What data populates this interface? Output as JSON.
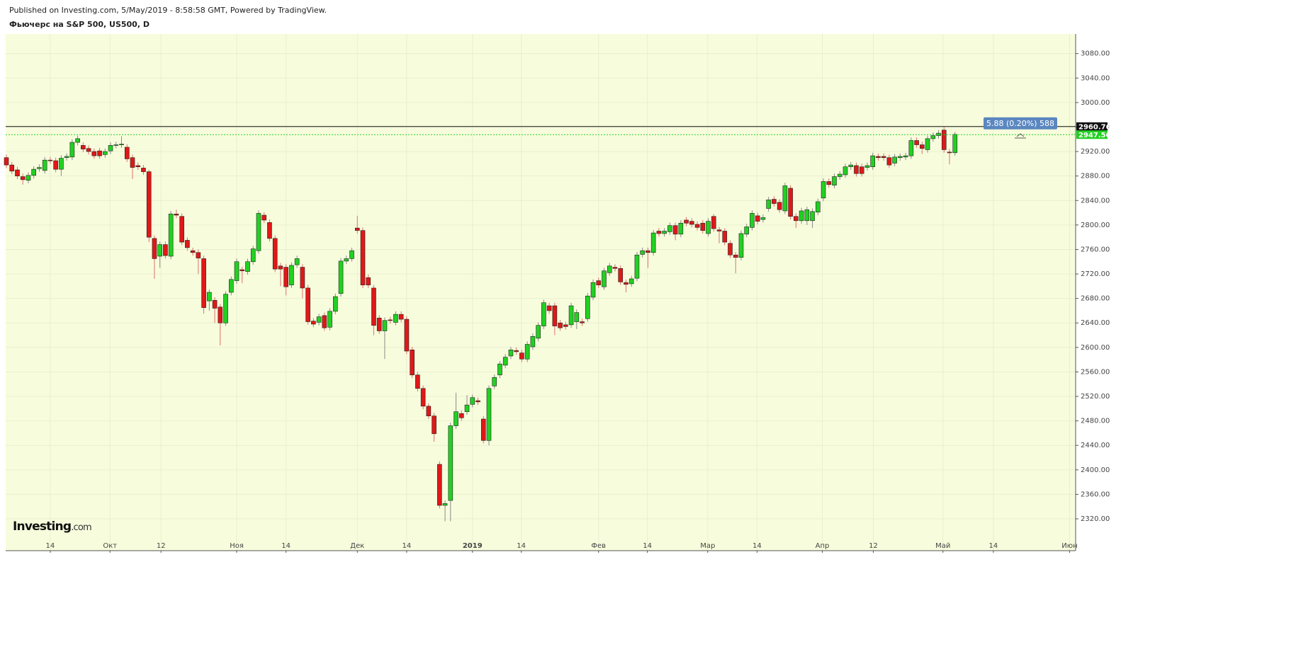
{
  "header": {
    "published": "Published on Investing.com, 5/May/2019 - 8:58:58 GMT, Powered by TradingView.",
    "symbol": "Фьючерс на S&P 500, US500, D"
  },
  "logo": {
    "name": "Investing",
    "suffix": ".com"
  },
  "chart_data": {
    "type": "candlestick",
    "up_color": "#22d022",
    "down_color": "#e01818",
    "background": "#f7fddc",
    "grid": true,
    "xlim": [
      -0.13,
      195
    ],
    "xticks": [
      {
        "value": 8.0,
        "label": "14"
      },
      {
        "value": 18.9,
        "label": "Окт"
      },
      {
        "value": 28.2,
        "label": "12"
      },
      {
        "value": 42.0,
        "label": "Ноя"
      },
      {
        "value": 51.0,
        "label": "14"
      },
      {
        "value": 64.0,
        "label": "Дек"
      },
      {
        "value": 73.0,
        "label": "14"
      },
      {
        "value": 85.0,
        "label": "2019"
      },
      {
        "value": 93.9,
        "label": "14"
      },
      {
        "value": 108.0,
        "label": "Фев"
      },
      {
        "value": 116.9,
        "label": "14"
      },
      {
        "value": 127.9,
        "label": "Мар"
      },
      {
        "value": 136.9,
        "label": "14"
      },
      {
        "value": 148.8,
        "label": "Апр"
      },
      {
        "value": 158.1,
        "label": "12"
      },
      {
        "value": 170.8,
        "label": "Май"
      },
      {
        "value": 180.0,
        "label": "14"
      },
      {
        "value": 193.9,
        "label": "Июн"
      }
    ],
    "ylim": [
      2268,
      3112
    ],
    "yticks": [
      {
        "value": 2320,
        "label": "2320.00"
      },
      {
        "value": 2360,
        "label": "2360.00"
      },
      {
        "value": 2400,
        "label": "2400.00"
      },
      {
        "value": 2440,
        "label": "2440.00"
      },
      {
        "value": 2480,
        "label": "2480.00"
      },
      {
        "value": 2520,
        "label": "2520.00"
      },
      {
        "value": 2560,
        "label": "2560.00"
      },
      {
        "value": 2600,
        "label": "2600.00"
      },
      {
        "value": 2640,
        "label": "2640.00"
      },
      {
        "value": 2680,
        "label": "2680.00"
      },
      {
        "value": 2720,
        "label": "2720.00"
      },
      {
        "value": 2760,
        "label": "2760.00"
      },
      {
        "value": 2800,
        "label": "2800.00"
      },
      {
        "value": 2840,
        "label": "2840.00"
      },
      {
        "value": 2880,
        "label": "2880.00"
      },
      {
        "value": 2920,
        "label": "2920.00"
      },
      {
        "value": 2960,
        "label": "2960.00"
      },
      {
        "value": 3000,
        "label": "3000.00"
      },
      {
        "value": 3040,
        "label": "3040.00"
      },
      {
        "value": 3080,
        "label": "3080.00"
      }
    ],
    "price_lines": [
      {
        "value": 2960.76,
        "label": "2960.76",
        "color": "#111111",
        "style": "solid"
      },
      {
        "value": 2947.5,
        "label": "2947.50",
        "color": "#22d022",
        "style": "dotted"
      }
    ],
    "annotation": {
      "text": "5.88 (0.20%) 588",
      "color": "#5b87c0"
    },
    "open": [
      2910,
      2898,
      2890,
      2879,
      2873,
      2881,
      2892,
      2889,
      2906,
      2905,
      2891,
      2910,
      2911,
      2935,
      2930,
      2925,
      2920,
      2921,
      2915,
      2921,
      2930,
      2931,
      2927,
      2910,
      2897,
      2893,
      2887,
      2778,
      2749,
      2768,
      2749,
      2818,
      2814,
      2775,
      2758,
      2755,
      2745,
      2676,
      2677,
      2666,
      2640,
      2690,
      2709,
      2727,
      2724,
      2740,
      2758,
      2816,
      2804,
      2778,
      2733,
      2731,
      2702,
      2735,
      2731,
      2697,
      2643,
      2641,
      2652,
      2633,
      2659,
      2688,
      2741,
      2745,
      2795,
      2791,
      2714,
      2697,
      2648,
      2627,
      2645,
      2641,
      2654,
      2646,
      2596,
      2555,
      2533,
      2504,
      2488,
      2409,
      2342,
      2350,
      2472,
      2492,
      2495,
      2507,
      2513,
      2483,
      2448,
      2537,
      2555,
      2571,
      2586,
      2595,
      2591,
      2581,
      2601,
      2615,
      2635,
      2668,
      2668,
      2640,
      2637,
      2637,
      2642,
      2642,
      2647,
      2682,
      2709,
      2699,
      2722,
      2731,
      2729,
      2706,
      2704,
      2713,
      2752,
      2758,
      2755,
      2790,
      2786,
      2789,
      2799,
      2785,
      2808,
      2806,
      2801,
      2803,
      2786,
      2814,
      2792,
      2790,
      2770,
      2751,
      2747,
      2785,
      2796,
      2815,
      2809,
      2827,
      2842,
      2837,
      2823,
      2860,
      2814,
      2807,
      2807,
      2807,
      2821,
      2844,
      2871,
      2865,
      2879,
      2882,
      2895,
      2897,
      2895,
      2894,
      2895,
      2912,
      2912,
      2910,
      2901,
      2910,
      2911,
      2913,
      2938,
      2931,
      2923,
      2941,
      2946,
      2955,
      2919,
      2918
    ],
    "high": [
      2915,
      2903,
      2895,
      2884,
      2886,
      2896,
      2899,
      2911,
      2911,
      2910,
      2914,
      2917,
      2940,
      2946,
      2935,
      2930,
      2925,
      2926,
      2925,
      2935,
      2936,
      2945,
      2932,
      2915,
      2902,
      2898,
      2890,
      2783,
      2773,
      2773,
      2823,
      2825,
      2819,
      2780,
      2763,
      2760,
      2750,
      2695,
      2682,
      2671,
      2692,
      2716,
      2745,
      2732,
      2745,
      2766,
      2824,
      2821,
      2809,
      2783,
      2738,
      2736,
      2739,
      2750,
      2736,
      2702,
      2648,
      2655,
      2657,
      2664,
      2688,
      2746,
      2750,
      2763,
      2815,
      2796,
      2719,
      2702,
      2653,
      2649,
      2650,
      2659,
      2659,
      2651,
      2601,
      2560,
      2538,
      2509,
      2493,
      2414,
      2350,
      2477,
      2526,
      2497,
      2522,
      2523,
      2518,
      2488,
      2538,
      2556,
      2578,
      2589,
      2601,
      2600,
      2596,
      2610,
      2623,
      2641,
      2678,
      2673,
      2673,
      2645,
      2642,
      2673,
      2662,
      2647,
      2689,
      2711,
      2714,
      2730,
      2738,
      2736,
      2734,
      2711,
      2717,
      2756,
      2763,
      2763,
      2792,
      2795,
      2795,
      2804,
      2804,
      2808,
      2813,
      2811,
      2806,
      2808,
      2811,
      2818,
      2797,
      2795,
      2775,
      2756,
      2791,
      2802,
      2824,
      2820,
      2817,
      2846,
      2847,
      2842,
      2869,
      2865,
      2819,
      2828,
      2830,
      2827,
      2843,
      2876,
      2876,
      2884,
      2888,
      2900,
      2903,
      2902,
      2900,
      2902,
      2918,
      2917,
      2917,
      2915,
      2916,
      2917,
      2918,
      2943,
      2943,
      2936,
      2946,
      2951,
      2955,
      2960,
      2924,
      2952
    ],
    "low": [
      2893,
      2883,
      2875,
      2866,
      2868,
      2876,
      2887,
      2884,
      2900,
      2886,
      2880,
      2905,
      2906,
      2930,
      2919,
      2915,
      2908,
      2908,
      2910,
      2916,
      2925,
      2926,
      2903,
      2875,
      2890,
      2882,
      2772,
      2712,
      2730,
      2745,
      2744,
      2811,
      2767,
      2758,
      2750,
      2720,
      2655,
      2660,
      2640,
      2603,
      2635,
      2685,
      2704,
      2705,
      2719,
      2735,
      2753,
      2803,
      2773,
      2723,
      2700,
      2685,
      2697,
      2730,
      2680,
      2637,
      2633,
      2636,
      2627,
      2628,
      2654,
      2683,
      2736,
      2740,
      2786,
      2697,
      2697,
      2620,
      2622,
      2581,
      2639,
      2636,
      2641,
      2589,
      2550,
      2528,
      2499,
      2483,
      2446,
      2337,
      2316,
      2316,
      2467,
      2480,
      2490,
      2502,
      2506,
      2443,
      2440,
      2532,
      2550,
      2566,
      2581,
      2588,
      2576,
      2576,
      2596,
      2610,
      2630,
      2655,
      2620,
      2627,
      2629,
      2632,
      2630,
      2635,
      2642,
      2677,
      2697,
      2694,
      2717,
      2724,
      2702,
      2690,
      2699,
      2708,
      2747,
      2730,
      2750,
      2781,
      2781,
      2784,
      2775,
      2780,
      2798,
      2796,
      2791,
      2786,
      2781,
      2789,
      2770,
      2767,
      2746,
      2721,
      2742,
      2780,
      2791,
      2801,
      2804,
      2822,
      2830,
      2820,
      2818,
      2809,
      2795,
      2802,
      2800,
      2795,
      2816,
      2839,
      2861,
      2860,
      2874,
      2877,
      2890,
      2879,
      2879,
      2889,
      2890,
      2905,
      2905,
      2893,
      2896,
      2905,
      2906,
      2908,
      2926,
      2916,
      2918,
      2936,
      2941,
      2918,
      2899,
      2913
    ],
    "close": [
      2898,
      2888,
      2880,
      2874,
      2881,
      2891,
      2894,
      2906,
      2905,
      2891,
      2909,
      2912,
      2935,
      2941,
      2924,
      2920,
      2913,
      2913,
      2920,
      2930,
      2931,
      2932,
      2908,
      2894,
      2895,
      2887,
      2780,
      2745,
      2768,
      2750,
      2818,
      2816,
      2772,
      2763,
      2755,
      2746,
      2665,
      2690,
      2664,
      2640,
      2687,
      2711,
      2740,
      2725,
      2740,
      2761,
      2819,
      2808,
      2778,
      2728,
      2728,
      2699,
      2734,
      2745,
      2697,
      2642,
      2638,
      2650,
      2632,
      2659,
      2683,
      2741,
      2745,
      2758,
      2791,
      2702,
      2702,
      2636,
      2627,
      2644,
      2644,
      2654,
      2646,
      2594,
      2555,
      2533,
      2504,
      2488,
      2459,
      2342,
      2345,
      2472,
      2495,
      2485,
      2506,
      2518,
      2511,
      2448,
      2533,
      2551,
      2573,
      2584,
      2596,
      2593,
      2581,
      2605,
      2618,
      2636,
      2673,
      2660,
      2635,
      2632,
      2634,
      2668,
      2657,
      2640,
      2684,
      2706,
      2702,
      2725,
      2733,
      2729,
      2707,
      2703,
      2712,
      2751,
      2758,
      2755,
      2787,
      2786,
      2790,
      2799,
      2785,
      2803,
      2803,
      2801,
      2796,
      2791,
      2806,
      2794,
      2790,
      2772,
      2751,
      2747,
      2786,
      2797,
      2819,
      2806,
      2812,
      2841,
      2835,
      2825,
      2864,
      2814,
      2807,
      2823,
      2825,
      2822,
      2838,
      2871,
      2866,
      2879,
      2883,
      2895,
      2898,
      2884,
      2884,
      2897,
      2913,
      2910,
      2910,
      2898,
      2911,
      2912,
      2913,
      2938,
      2931,
      2925,
      2941,
      2946,
      2950,
      2923,
      2918,
      2948
    ]
  }
}
